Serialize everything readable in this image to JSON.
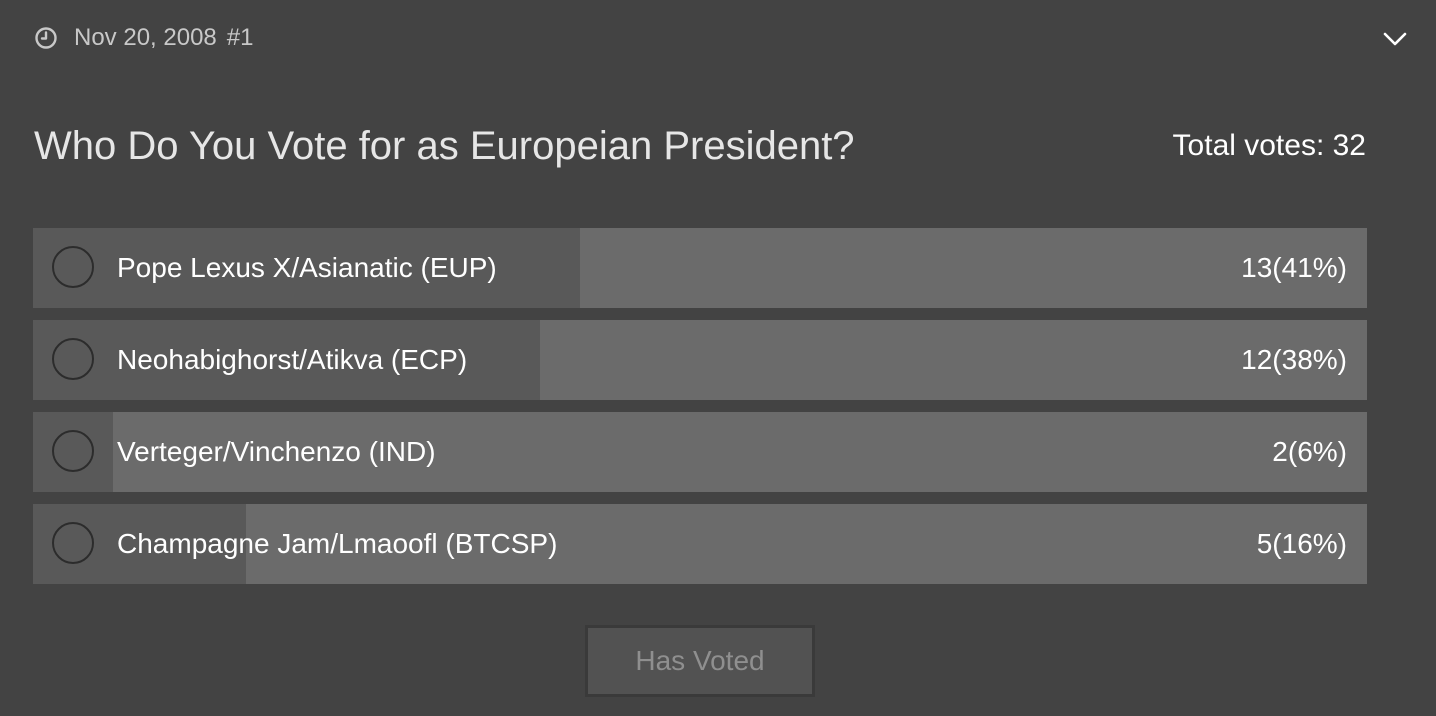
{
  "poll": {
    "meta": {
      "date": "Nov 20, 2008",
      "number": "#1",
      "clock_icon": "clock-icon",
      "expand_icon": "chevron-down-icon"
    },
    "title": "Who Do You Vote for as Europeian President?",
    "total_votes_label": "Total votes: 32",
    "options": [
      {
        "label": "Pope Lexus X/Asianatic (EUP)",
        "result": "13(41%)",
        "votes": 13,
        "percent": 41
      },
      {
        "label": "Neohabighorst/Atikva (ECP)",
        "result": "12(38%)",
        "votes": 12,
        "percent": 38
      },
      {
        "label": "Verteger/Vinchenzo (IND)",
        "result": "2(6%)",
        "votes": 2,
        "percent": 6
      },
      {
        "label": "Champagne Jam/Lmaoofl (BTCSP)",
        "result": "5(16%)",
        "votes": 5,
        "percent": 16
      }
    ],
    "button_label": "Has Voted"
  },
  "colors": {
    "background": "#434343",
    "bar_track": "#6b6b6b",
    "bar_fill": "#595959",
    "button_bg": "#525252",
    "button_text": "#8f8f8f"
  }
}
